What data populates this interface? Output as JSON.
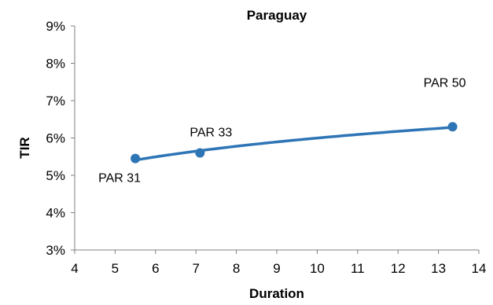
{
  "chart_data": {
    "type": "scatter",
    "title": "Paraguay",
    "xlabel": "Duration",
    "ylabel": "TIR",
    "xlim": [
      4,
      14
    ],
    "ylim": [
      3,
      9
    ],
    "x_ticks": [
      "4",
      "5",
      "6",
      "7",
      "8",
      "9",
      "10",
      "11",
      "12",
      "13",
      "14"
    ],
    "y_ticks": [
      "3%",
      "4%",
      "5%",
      "6%",
      "7%",
      "8%",
      "9%"
    ],
    "grid": false,
    "legend": "none",
    "series": [
      {
        "points": [
          {
            "label": "PAR 31",
            "x": 5.5,
            "y": 5.45
          },
          {
            "label": "PAR 33",
            "x": 7.1,
            "y": 5.6
          },
          {
            "label": "PAR 50",
            "x": 13.35,
            "y": 6.3
          }
        ],
        "color": "#2e75b6",
        "trendline": "logarithmic"
      }
    ]
  }
}
